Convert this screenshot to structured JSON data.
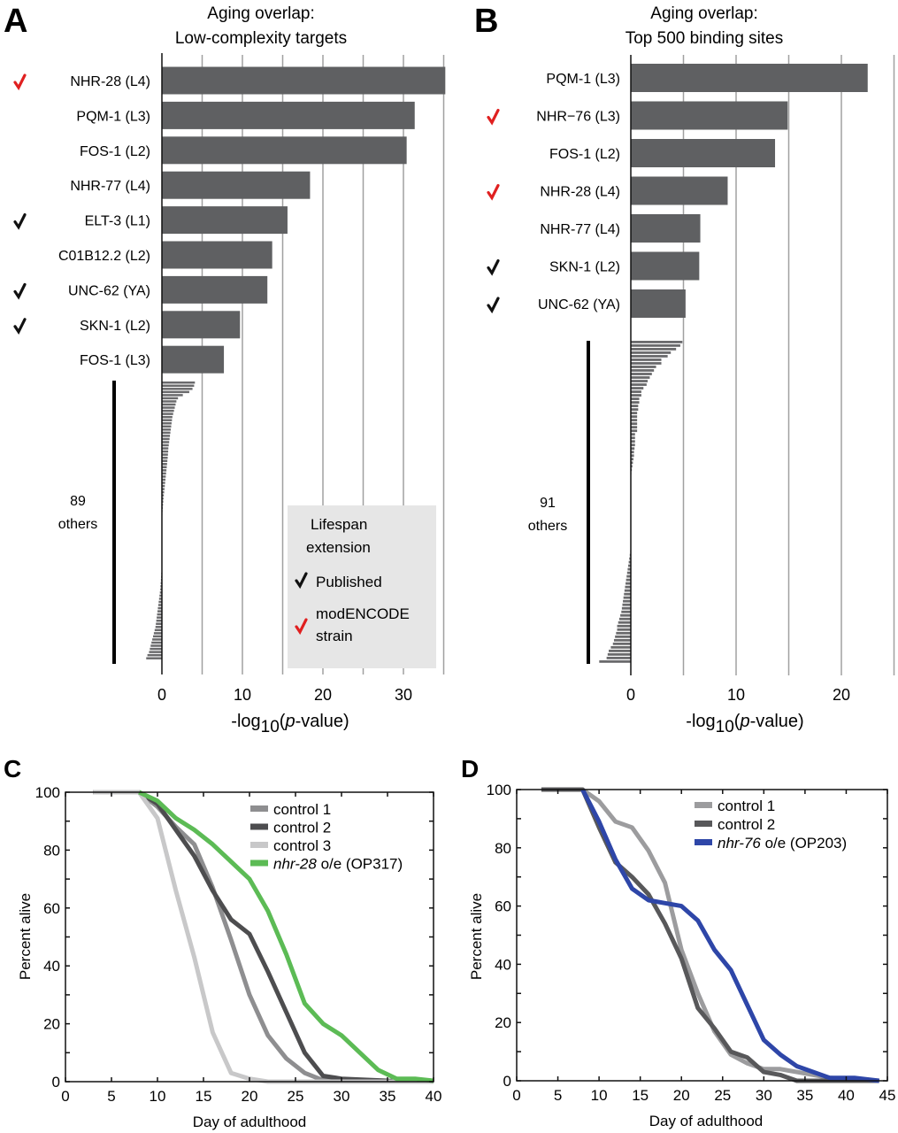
{
  "panels": {
    "A": {
      "letter": "A"
    },
    "B": {
      "letter": "B"
    },
    "C": {
      "letter": "C"
    },
    "D": {
      "letter": "D"
    }
  },
  "colors": {
    "bar": "#5f6062",
    "grid": "#a0a0a0",
    "check_published": "#111111",
    "check_modencode": "#e02020",
    "legend_bg": "#e6e6e6"
  },
  "legend_box": {
    "title_line1": "Lifespan",
    "title_line2": "extension",
    "published_label": "Published",
    "modencode_line1": "modENCODE",
    "modencode_line2": "strain"
  },
  "chart_data": [
    {
      "id": "A",
      "type": "bar",
      "orientation": "horizontal",
      "title_line1": "Aging overlap:",
      "title_line2": "Low-complexity targets",
      "xlabel_prefix": "-log",
      "xlabel_sub": "10",
      "xlabel_open": "(",
      "xlabel_italic": "p",
      "xlabel_suffix": "-value)",
      "xlim": [
        -2,
        35
      ],
      "xticks": [
        0,
        10,
        20,
        30
      ],
      "gridlines": [
        5,
        10,
        15,
        20,
        25,
        30,
        35
      ],
      "categories": [
        "NHR-28 (L4)",
        "PQM-1 (L3)",
        "FOS-1 (L2)",
        "NHR-77 (L4)",
        "ELT-3 (L1)",
        "C01B12.2 (L2)",
        "UNC-62 (YA)",
        "SKN-1 (L2)",
        "FOS-1 (L3)"
      ],
      "values": [
        35.2,
        31.4,
        30.4,
        18.4,
        15.6,
        13.7,
        13.1,
        9.7,
        7.7
      ],
      "marks": [
        "modencode",
        "",
        "",
        "",
        "published",
        "",
        "published",
        "published",
        ""
      ],
      "others_count_label": "89",
      "others_word": "others",
      "others_values": [
        4.1,
        4.0,
        3.8,
        3.4,
        2.6,
        2.0,
        1.8,
        1.7,
        1.6,
        1.5,
        1.4,
        1.3,
        1.25,
        1.2,
        1.15,
        1.1,
        1.05,
        1.0,
        0.95,
        0.9,
        0.85,
        0.8,
        0.78,
        0.75,
        0.72,
        0.68,
        0.64,
        0.6,
        0.56,
        0.52,
        0.48,
        0.44,
        0.4,
        0.36,
        0.32,
        0.28,
        0.24,
        0.2,
        0.17,
        0.14,
        0.11,
        0.08,
        0.06,
        0.04,
        0.02,
        0.0,
        0.0,
        0.0,
        0.0,
        0.0,
        0.0,
        0.0,
        0.0,
        0.0,
        0.0,
        0.0,
        0.0,
        0.0,
        0.0,
        -0.02,
        -0.05,
        -0.08,
        -0.1,
        -0.12,
        -0.15,
        -0.18,
        -0.2,
        -0.25,
        -0.3,
        -0.35,
        -0.4,
        -0.45,
        -0.5,
        -0.55,
        -0.6,
        -0.65,
        -0.7,
        -0.75,
        -0.8,
        -0.9,
        -1.0,
        -1.1,
        -1.2,
        -1.3,
        -1.4,
        -1.5,
        -1.6,
        -1.8,
        -1.95
      ]
    },
    {
      "id": "B",
      "type": "bar",
      "orientation": "horizontal",
      "title_line1": "Aging overlap:",
      "title_line2": "Top 500 binding sites",
      "xlabel_prefix": "-log",
      "xlabel_sub": "10",
      "xlabel_open": "(",
      "xlabel_italic": "p",
      "xlabel_suffix": "-value)",
      "xlim": [
        -3,
        25
      ],
      "xticks": [
        0,
        10,
        20
      ],
      "gridlines": [
        5,
        10,
        15,
        20,
        25
      ],
      "categories": [
        "PQM-1 (L3)",
        "NHR−76 (L3)",
        "FOS-1 (L2)",
        "NHR-28 (L4)",
        "NHR-77 (L4)",
        "SKN-1 (L2)",
        "UNC-62 (YA)"
      ],
      "values": [
        22.5,
        14.9,
        13.7,
        9.2,
        6.6,
        6.5,
        5.2
      ],
      "marks": [
        "",
        "modencode",
        "",
        "modencode",
        "",
        "published",
        "published"
      ],
      "others_count_label": "91",
      "others_word": "others",
      "others_values": [
        4.9,
        4.7,
        4.3,
        3.8,
        3.5,
        2.9,
        2.9,
        2.4,
        2.2,
        2.0,
        1.8,
        1.6,
        1.5,
        1.2,
        1.0,
        1.0,
        0.8,
        0.8,
        0.7,
        0.7,
        0.6,
        0.6,
        0.6,
        0.6,
        0.6,
        0.6,
        0.4,
        0.4,
        0.4,
        0.4,
        0.35,
        0.3,
        0.3,
        0.25,
        0.2,
        0.15,
        0.1,
        0.05,
        0.0,
        0.0,
        0.0,
        0.0,
        0.0,
        0.0,
        0.0,
        0.0,
        0.0,
        0.0,
        0.0,
        0.0,
        0.0,
        0.0,
        0.0,
        0.0,
        0.0,
        0.0,
        0.0,
        0.0,
        0.0,
        -0.05,
        -0.1,
        -0.15,
        -0.2,
        -0.25,
        -0.3,
        -0.35,
        -0.4,
        -0.45,
        -0.5,
        -0.55,
        -0.6,
        -0.65,
        -0.7,
        -0.75,
        -0.8,
        -0.85,
        -0.9,
        -1.0,
        -1.1,
        -1.2,
        -1.3,
        -1.3,
        -1.4,
        -1.5,
        -1.6,
        -1.7,
        -1.9,
        -2.1,
        -2.2,
        -2.3,
        -3.0
      ]
    },
    {
      "id": "C",
      "type": "line",
      "xlabel": "Day of adulthood",
      "ylabel": "Percent alive",
      "xlim": [
        0,
        40
      ],
      "ylim": [
        0,
        100
      ],
      "xticks": [
        0,
        5,
        10,
        15,
        20,
        25,
        30,
        35,
        40
      ],
      "yticks": [
        0,
        20,
        40,
        60,
        80,
        100
      ],
      "legend_position": "top-right",
      "series": [
        {
          "name": "control 1",
          "italic_part": "",
          "color": "#8e8e90",
          "x": [
            3,
            8,
            10,
            12,
            14,
            16,
            18,
            20,
            22,
            24,
            26,
            28,
            30,
            35,
            40
          ],
          "y": [
            100,
            100,
            95,
            88,
            82,
            67,
            49,
            30,
            16,
            8,
            3,
            0.5,
            0,
            0,
            0
          ]
        },
        {
          "name": "control 2",
          "italic_part": "",
          "color": "#4d4d4f",
          "x": [
            3,
            8,
            10,
            12,
            14,
            16,
            18,
            20,
            22,
            24,
            26,
            28,
            30,
            35,
            40
          ],
          "y": [
            100,
            100,
            96,
            87,
            78,
            66,
            56,
            51,
            38,
            24,
            10,
            2,
            1,
            0.3,
            0
          ]
        },
        {
          "name": "control 3",
          "italic_part": "",
          "color": "#c8c8c9",
          "x": [
            3,
            8,
            10,
            12,
            14,
            16,
            18,
            20,
            22,
            25,
            30,
            40
          ],
          "y": [
            100,
            100,
            91,
            66,
            43,
            17,
            3,
            1,
            0,
            0,
            0,
            0
          ]
        },
        {
          "name": " o/e (OP317)",
          "italic_part": "nhr-28",
          "color": "#5cbb55",
          "x": [
            8,
            10,
            12,
            14,
            16,
            18,
            20,
            22,
            24,
            26,
            28,
            30,
            32,
            34,
            36,
            38,
            40
          ],
          "y": [
            100,
            97,
            91,
            87,
            82,
            76,
            70,
            59,
            44,
            27,
            20,
            16,
            10,
            4,
            1,
            1,
            0.3
          ]
        }
      ]
    },
    {
      "id": "D",
      "type": "line",
      "xlabel": "Day of adulthood",
      "ylabel": "Percent alive",
      "xlim": [
        0,
        45
      ],
      "ylim": [
        0,
        100
      ],
      "xticks": [
        0,
        5,
        10,
        15,
        20,
        25,
        30,
        35,
        40,
        45
      ],
      "yticks": [
        0,
        20,
        40,
        60,
        80,
        100
      ],
      "legend_position": "top-right",
      "series": [
        {
          "name": "control 1",
          "italic_part": "",
          "color": "#9c9c9e",
          "x": [
            3,
            8,
            10,
            12,
            14,
            16,
            18,
            20,
            22,
            24,
            26,
            28,
            30,
            32,
            34,
            38,
            44
          ],
          "y": [
            100,
            100,
            96,
            89,
            87,
            79,
            68,
            45,
            30,
            17,
            9,
            6,
            4,
            4,
            3,
            1,
            0
          ]
        },
        {
          "name": "control 2",
          "italic_part": "",
          "color": "#58585a",
          "x": [
            3,
            8,
            10,
            12,
            14,
            16,
            18,
            20,
            22,
            24,
            26,
            28,
            30,
            32,
            34,
            44
          ],
          "y": [
            100,
            100,
            87,
            75,
            70,
            64,
            54,
            42,
            25,
            18,
            10,
            8,
            3,
            2,
            0,
            0
          ]
        },
        {
          "name": " o/e (OP203)",
          "italic_part": "nhr-76",
          "color": "#2e46a8",
          "x": [
            8,
            10,
            12,
            14,
            16,
            18,
            20,
            22,
            24,
            26,
            28,
            30,
            32,
            34,
            36,
            38,
            41,
            44
          ],
          "y": [
            100,
            89,
            76,
            66,
            62,
            61,
            60,
            55,
            45,
            38,
            26,
            14,
            9,
            5,
            3,
            1,
            1,
            0
          ]
        }
      ]
    }
  ]
}
